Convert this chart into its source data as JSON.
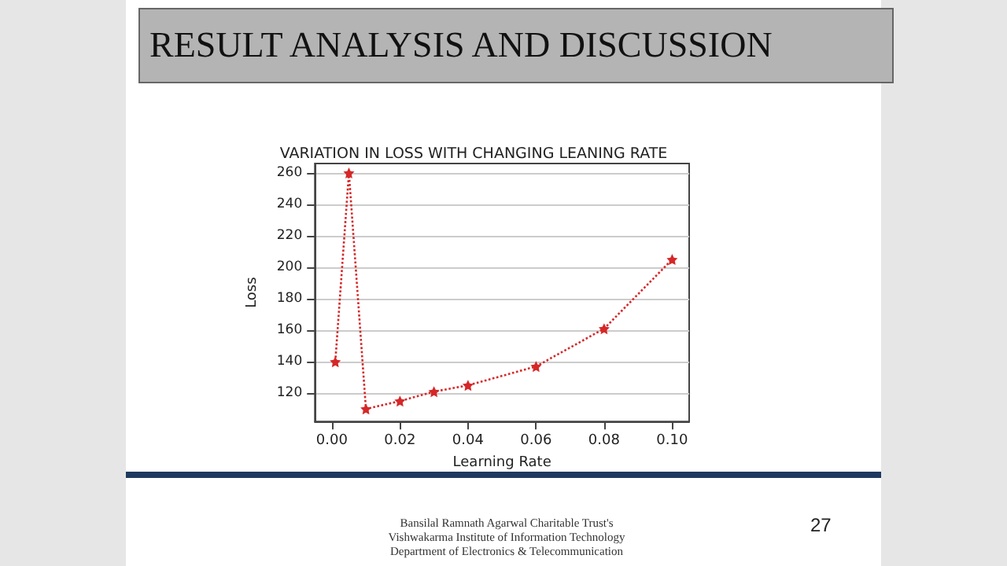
{
  "chart_data": {
    "type": "line",
    "title": "VARIATION IN LOSS WITH CHANGING LEANING RATE",
    "xlabel": "Learning Rate",
    "ylabel": "Loss",
    "annotations": [
      "RESULT ANALYSIS AND DISCUSSION",
      "Bansilal Ramnath Agarwal Charitable Trust's",
      "Vishwakarma Institute of Information Technology",
      "Department of Electronics & Telecommunication",
      "27"
    ],
    "x": [
      0.001,
      0.005,
      0.01,
      0.02,
      0.03,
      0.04,
      0.06,
      0.08,
      0.1
    ],
    "series": [
      {
        "color": "#d62728",
        "values": [
          140,
          260,
          110,
          115,
          121,
          125,
          137,
          161,
          205
        ]
      }
    ],
    "xlim": [
      -0.005,
      0.105
    ],
    "ylim": [
      102,
      266
    ],
    "xticks": [
      {
        "value": 0,
        "label": "0.00"
      },
      {
        "value": 0.02,
        "label": "0.02"
      },
      {
        "value": 0.04,
        "label": "0.04"
      },
      {
        "value": 0.06,
        "label": "0.06"
      },
      {
        "value": 0.08,
        "label": "0.08"
      },
      {
        "value": 0.1,
        "label": "0.10"
      }
    ],
    "yticks": [
      120,
      140,
      160,
      180,
      200,
      220,
      240,
      260
    ],
    "grid": "y",
    "marker": "star",
    "line_style": "dotted"
  }
}
